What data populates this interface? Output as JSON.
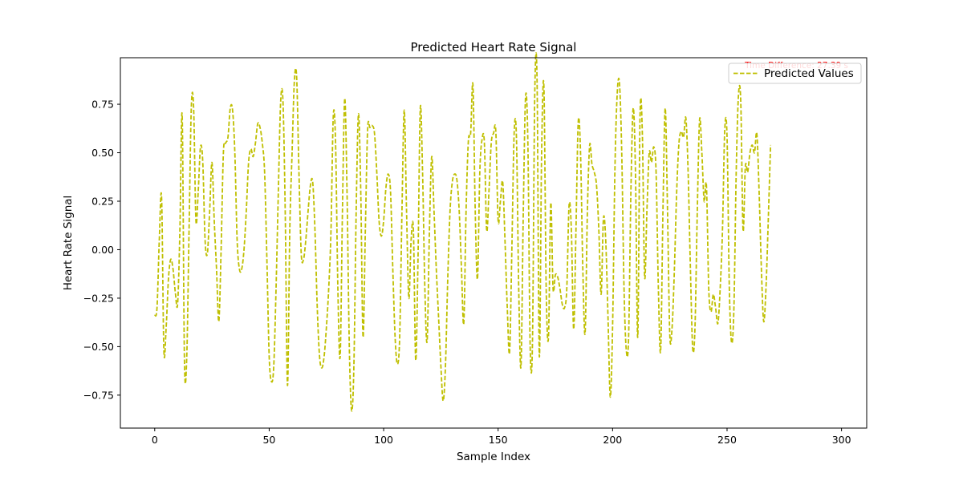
{
  "chart_data": {
    "type": "line",
    "title": "Predicted Heart Rate Signal",
    "xlabel": "Sample Index",
    "ylabel": "Heart Rate Signal",
    "xlim": [
      -15,
      311
    ],
    "ylim": [
      -0.92,
      0.99
    ],
    "xticks": [
      0,
      50,
      100,
      150,
      200,
      250,
      300
    ],
    "yticks": [
      -0.75,
      -0.5,
      -0.25,
      0.0,
      0.25,
      0.5,
      0.75
    ],
    "xtick_labels": [
      "0",
      "50",
      "100",
      "150",
      "200",
      "250",
      "300"
    ],
    "ytick_labels": [
      "−0.75",
      "−0.50",
      "−0.25",
      "0.00",
      "0.25",
      "0.50",
      "0.75"
    ],
    "grid": false,
    "legend_position": "top-right",
    "annotation": {
      "text": "Time Difference: 27.39 s",
      "color": "#ff0000"
    },
    "series": [
      {
        "name": "Predicted Values",
        "color": "#bfbf00",
        "style": "dashed",
        "x_start": 0,
        "x_step": 1,
        "values": [
          -0.34,
          -0.3,
          0.05,
          0.27,
          -0.52,
          -0.4,
          -0.15,
          -0.05,
          -0.1,
          -0.22,
          -0.28,
          0.1,
          0.69,
          -0.58,
          -0.55,
          0.1,
          0.74,
          0.73,
          0.15,
          0.3,
          0.53,
          0.45,
          0.05,
          -0.02,
          0.2,
          0.45,
          0.15,
          -0.1,
          -0.37,
          0.0,
          0.5,
          0.55,
          0.58,
          0.73,
          0.72,
          0.5,
          0.05,
          -0.1,
          -0.1,
          0.0,
          0.2,
          0.45,
          0.52,
          0.48,
          0.55,
          0.65,
          0.63,
          0.55,
          0.4,
          -0.05,
          -0.55,
          -0.68,
          -0.6,
          -0.2,
          0.3,
          0.76,
          0.77,
          0.2,
          -0.7,
          0.1,
          0.5,
          0.87,
          0.89,
          0.4,
          -0.02,
          -0.05,
          0.05,
          0.2,
          0.33,
          0.35,
          0.1,
          -0.3,
          -0.55,
          -0.61,
          -0.55,
          -0.4,
          -0.2,
          0.1,
          0.69,
          0.55,
          -0.2,
          -0.55,
          0.2,
          0.78,
          0.3,
          -0.5,
          -0.83,
          -0.6,
          0.2,
          0.7,
          0.3,
          -0.45,
          0.1,
          0.62,
          0.63,
          0.64,
          0.6,
          0.4,
          0.15,
          0.07,
          0.15,
          0.32,
          0.39,
          0.3,
          -0.1,
          -0.45,
          -0.59,
          -0.45,
          0.2,
          0.72,
          0.2,
          -0.25,
          0.05,
          0.1,
          -0.57,
          -0.05,
          0.73,
          0.4,
          -0.2,
          -0.47,
          0.1,
          0.48,
          0.2,
          -0.1,
          -0.35,
          -0.6,
          -0.78,
          -0.6,
          -0.15,
          0.2,
          0.35,
          0.39,
          0.36,
          0.2,
          -0.1,
          -0.38,
          0.2,
          0.56,
          0.6,
          0.85,
          0.2,
          -0.15,
          0.4,
          0.57,
          0.55,
          0.1,
          0.3,
          0.55,
          0.6,
          0.61,
          0.15,
          0.25,
          0.35,
          0.05,
          -0.3,
          -0.53,
          0.0,
          0.6,
          0.58,
          -0.2,
          -0.6,
          0.2,
          0.79,
          0.55,
          -0.5,
          -0.48,
          0.8,
          0.88,
          -0.55,
          0.5,
          0.84,
          -0.2,
          -0.45,
          0.24,
          -0.2,
          -0.13,
          -0.14,
          -0.2,
          -0.28,
          -0.3,
          -0.2,
          0.23,
          0.1,
          -0.41,
          0.1,
          0.66,
          0.5,
          -0.1,
          -0.43,
          0.2,
          0.54,
          0.44,
          0.4,
          0.33,
          0.1,
          -0.23,
          0.16,
          0.05,
          -0.35,
          -0.76,
          -0.4,
          0.4,
          0.8,
          0.86,
          0.5,
          -0.2,
          -0.52,
          -0.45,
          0.3,
          0.73,
          0.4,
          -0.45,
          0.7,
          0.6,
          -0.14,
          0.2,
          0.5,
          0.45,
          0.53,
          0.4,
          -0.2,
          -0.52,
          0.2,
          0.73,
          0.2,
          -0.44,
          -0.4,
          -0.1,
          0.3,
          0.55,
          0.61,
          0.58,
          0.68,
          0.4,
          -0.1,
          -0.51,
          -0.4,
          0.2,
          0.67,
          0.5,
          0.25,
          0.33,
          -0.2,
          -0.32,
          -0.23,
          -0.3,
          -0.38,
          -0.2,
          0.1,
          0.62,
          0.58,
          -0.2,
          -0.48,
          -0.3,
          0.4,
          0.8,
          0.76,
          0.1,
          0.43,
          0.4,
          0.5,
          0.54,
          0.5,
          0.6,
          0.3,
          -0.1,
          -0.37,
          -0.2,
          0.15,
          0.54
        ]
      }
    ]
  }
}
